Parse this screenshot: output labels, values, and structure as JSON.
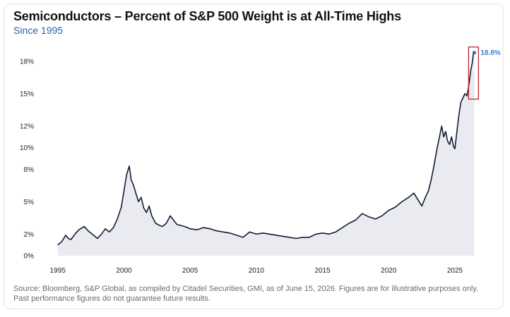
{
  "chart_data": {
    "type": "area",
    "title": "Semiconductors – Percent of S&P 500 Weight is at All-Time Highs",
    "subtitle": "Since 1995",
    "xlabel": "",
    "ylabel": "",
    "x_ticks": [
      "1995",
      "2000",
      "2005",
      "2010",
      "2015",
      "2020",
      "2025"
    ],
    "y_ticks": [
      "0%",
      "2%",
      "5%",
      "8%",
      "10%",
      "12%",
      "15%",
      "18%"
    ],
    "xlim": [
      1994.8,
      2026.6
    ],
    "ylim": [
      0,
      19.5
    ],
    "grid": false,
    "legend": "none",
    "series": [
      {
        "color": "#141c33",
        "fill": "#e9ebf0",
        "x": [
          1995.0,
          1995.3,
          1995.6,
          1995.8,
          1996.0,
          1996.3,
          1996.6,
          1997.0,
          1997.3,
          1997.6,
          1997.8,
          1998.0,
          1998.3,
          1998.6,
          1998.9,
          1999.2,
          1999.5,
          1999.8,
          2000.0,
          2000.2,
          2000.4,
          2000.55,
          2000.7,
          2000.9,
          2001.1,
          2001.3,
          2001.5,
          2001.7,
          2001.9,
          2002.1,
          2002.4,
          2002.7,
          2002.9,
          2003.2,
          2003.5,
          2003.8,
          2004.0,
          2004.3,
          2004.6,
          2005.0,
          2005.5,
          2006.0,
          2006.5,
          2007.0,
          2007.5,
          2008.0,
          2008.5,
          2009.0,
          2009.5,
          2010.0,
          2010.5,
          2011.0,
          2011.5,
          2012.0,
          2012.5,
          2013.0,
          2013.5,
          2014.0,
          2014.5,
          2015.0,
          2015.5,
          2016.0,
          2016.5,
          2017.0,
          2017.5,
          2018.0,
          2018.5,
          2019.0,
          2019.5,
          2020.0,
          2020.5,
          2021.0,
          2021.5,
          2021.9,
          2022.2,
          2022.5,
          2022.8,
          2023.0,
          2023.2,
          2023.4,
          2023.6,
          2023.8,
          2024.0,
          2024.15,
          2024.3,
          2024.45,
          2024.6,
          2024.75,
          2024.9,
          2025.0,
          2025.15,
          2025.3,
          2025.45,
          2025.6,
          2025.75,
          2025.9,
          2026.0,
          2026.1,
          2026.2,
          2026.3,
          2026.4,
          2026.46
        ],
        "values": [
          1.0,
          1.3,
          1.9,
          1.6,
          1.5,
          2.0,
          2.4,
          2.7,
          2.3,
          2.0,
          1.8,
          1.6,
          2.0,
          2.5,
          2.2,
          2.6,
          3.4,
          4.5,
          6.0,
          7.5,
          8.3,
          7.0,
          6.6,
          5.8,
          5.0,
          5.4,
          4.4,
          4.0,
          4.6,
          3.7,
          3.0,
          2.8,
          2.7,
          3.0,
          3.7,
          3.2,
          2.9,
          2.8,
          2.7,
          2.5,
          2.4,
          2.6,
          2.5,
          2.3,
          2.2,
          2.1,
          1.9,
          1.7,
          2.2,
          2.0,
          2.1,
          2.0,
          1.9,
          1.8,
          1.7,
          1.6,
          1.7,
          1.7,
          2.0,
          2.1,
          2.0,
          2.2,
          2.6,
          3.0,
          3.3,
          3.9,
          3.6,
          3.4,
          3.7,
          4.2,
          4.5,
          5.0,
          5.4,
          5.8,
          5.2,
          4.6,
          5.5,
          6.0,
          7.0,
          8.2,
          9.6,
          10.8,
          12.0,
          11.0,
          11.5,
          10.6,
          10.3,
          11.0,
          10.1,
          9.9,
          11.5,
          13.0,
          14.2,
          14.6,
          15.0,
          14.8,
          15.4,
          16.2,
          17.2,
          17.8,
          18.8,
          18.8
        ]
      }
    ],
    "annotations": [
      {
        "text": "18.8%",
        "x": 2026.46,
        "y": 18.8,
        "highlight_box": true
      }
    ]
  },
  "footer": {
    "source": "Source: Bloomberg, S&P Global, as compiled by Citadel Securities, GMI, as of June 15, 2026. Figures are for illustrative purposes only. Past performance figures do not guarantee future results."
  },
  "colors": {
    "line": "#141c33",
    "area": "#e9ebf0",
    "subtitle": "#2b5ea7",
    "highlight_box": "#c0262d",
    "end_label": "#3d7bd9",
    "end_marker": "#2f6fd3"
  }
}
